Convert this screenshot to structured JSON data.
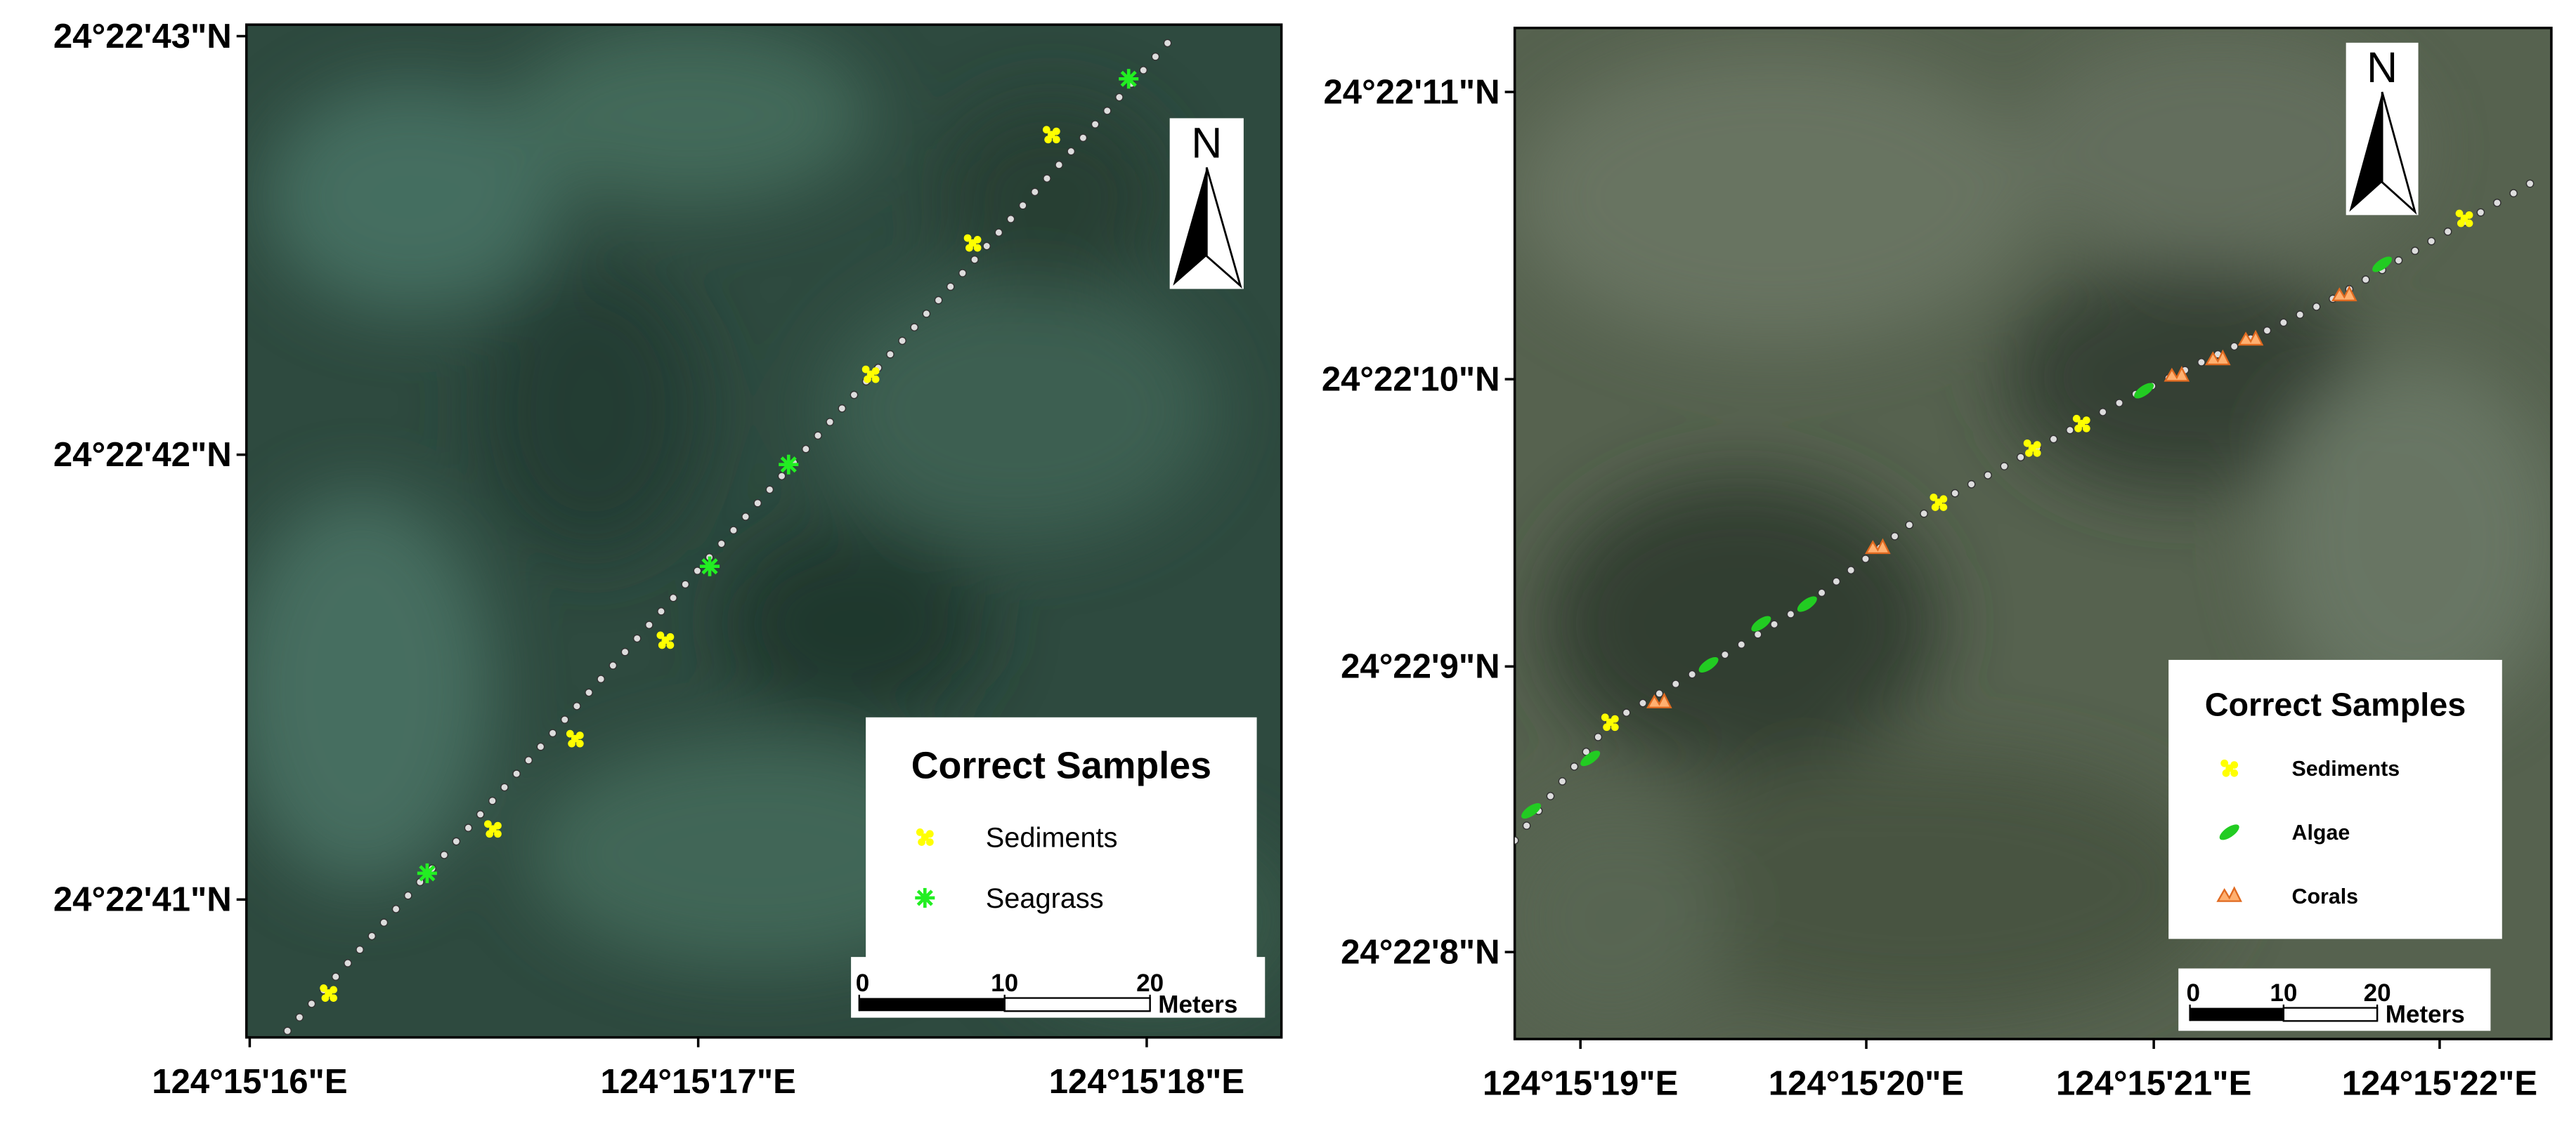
{
  "maps": [
    {
      "lat_labels": [
        "24°22'43\"N",
        "24°22'42\"N",
        "24°22'41\"N"
      ],
      "lon_labels": [
        "124°15'16\"E",
        "124°15'17\"E",
        "124°15'18\"E"
      ],
      "legend": {
        "title": "Correct Samples",
        "items": [
          "Sediments",
          "Seagrass"
        ]
      },
      "scale_bar": {
        "ticks": [
          0,
          10,
          20
        ],
        "unit": "Meters"
      },
      "north": "N"
    },
    {
      "lat_labels": [
        "24°22'11\"N",
        "24°22'10\"N",
        "24°22'9\"N",
        "24°22'8\"N"
      ],
      "lon_labels": [
        "124°15'19\"E",
        "124°15'20\"E",
        "124°15'21\"E",
        "124°15'22\"E"
      ],
      "legend": {
        "title": "Correct Samples",
        "items": [
          "Sediments",
          "Algae",
          "Corals"
        ]
      },
      "scale_bar": {
        "ticks": [
          0,
          10,
          20
        ],
        "unit": "Meters"
      },
      "north": "N"
    }
  ]
}
